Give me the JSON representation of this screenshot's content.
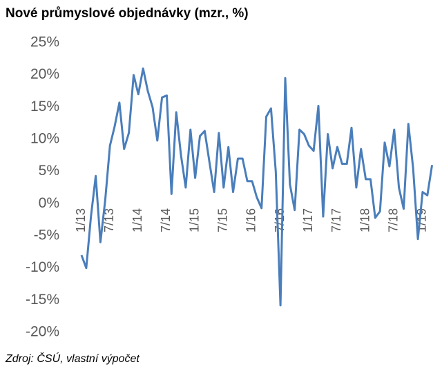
{
  "chart_data": {
    "type": "line",
    "title": "Nové průmyslové objednávky (mzr., %)",
    "source": "Zdroj: ČSÚ, vlastní výpočet",
    "color": "#4a7ebb",
    "categories": [
      "1/13",
      null,
      null,
      null,
      null,
      null,
      "7/13",
      null,
      null,
      null,
      null,
      null,
      "1/14",
      null,
      null,
      null,
      null,
      null,
      "7/14",
      null,
      null,
      null,
      null,
      null,
      "1/15",
      null,
      null,
      null,
      null,
      null,
      "7/15",
      null,
      null,
      null,
      null,
      null,
      "1/16",
      null,
      null,
      null,
      null,
      null,
      "7/16",
      null,
      null,
      null,
      null,
      null,
      "1/17",
      null,
      null,
      null,
      null,
      null,
      "7/17",
      null,
      null,
      null,
      null,
      null,
      "1/18",
      null,
      null,
      null,
      null,
      null,
      "7/18",
      null,
      null,
      null,
      null,
      null,
      "1/19",
      null,
      null
    ],
    "values": [
      -8,
      -10,
      -2,
      4.3,
      -6,
      0.5,
      9,
      12,
      15.7,
      8.5,
      11,
      20,
      17,
      21,
      17.5,
      15,
      9.8,
      16.5,
      16.8,
      1.5,
      14.2,
      7.5,
      2.5,
      11.5,
      4,
      10.5,
      11.3,
      6.5,
      1.8,
      11,
      2.5,
      8.8,
      1.8,
      7,
      7,
      3.5,
      3.5,
      1,
      -0.7,
      13.5,
      14.8,
      5,
      -15.8,
      19.5,
      3,
      -1,
      11.5,
      10.8,
      9,
      8.2,
      15.2,
      -2,
      10.8,
      5.5,
      8.8,
      6.2,
      6.2,
      11.8,
      2.5,
      8.5,
      3.8,
      3.8,
      -2.2,
      -1.2,
      9.5,
      5.8,
      11.5,
      2.5,
      -0.8,
      12.4,
      5.5,
      -5.5,
      1.8,
      1.3,
      6
    ],
    "ylim": [
      -20,
      25
    ],
    "yticks": [
      {
        "value": 25,
        "label": "25%"
      },
      {
        "value": 20,
        "label": "20%"
      },
      {
        "value": 15,
        "label": "15%"
      },
      {
        "value": 10,
        "label": "10%"
      },
      {
        "value": 5,
        "label": "5%"
      },
      {
        "value": 0,
        "label": "0%"
      },
      {
        "value": -5,
        "label": "-5%"
      },
      {
        "value": -10,
        "label": "-10%"
      },
      {
        "value": -15,
        "label": "-15%"
      },
      {
        "value": -20,
        "label": "-20%"
      }
    ]
  }
}
